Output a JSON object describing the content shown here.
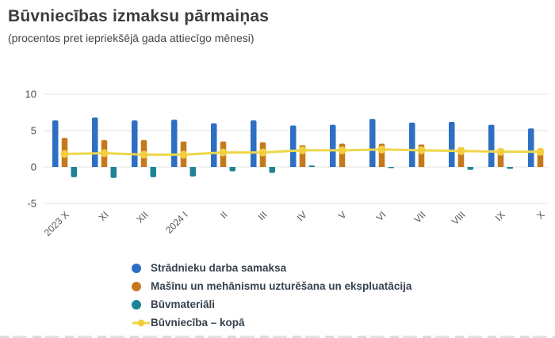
{
  "header": {
    "title": "Būvniecības izmaksu pārmaiņas",
    "subtitle": "(procentos pret iepriekšējā gada attiecīgo mēnesi)"
  },
  "chart_data": {
    "type": "bar",
    "title": "Būvniecības izmaksu pārmaiņas",
    "subtitle": "(procentos pret iepriekšējā gada attiecīgo mēnesi)",
    "categories": [
      "2023 X",
      "XI",
      "XII",
      "2024 I",
      "II",
      "III",
      "IV",
      "V",
      "VI",
      "VII",
      "VIII",
      "IX",
      "X"
    ],
    "series": [
      {
        "key": "wages",
        "name": "Strādnieku darba samaksa",
        "type": "bar",
        "color": "#2e6fc4",
        "values": [
          6.4,
          6.8,
          6.4,
          6.5,
          6.0,
          6.4,
          5.7,
          5.8,
          6.6,
          6.1,
          6.2,
          5.8,
          5.3
        ]
      },
      {
        "key": "machinery",
        "name": "Mašīnu un mehānismu uzturēšana un ekspluatācija",
        "type": "bar",
        "color": "#c5791d",
        "values": [
          4.0,
          3.7,
          3.7,
          3.5,
          3.5,
          3.4,
          3.0,
          3.2,
          3.2,
          3.1,
          2.7,
          1.9,
          1.9
        ]
      },
      {
        "key": "materials",
        "name": "Būvmateriāli",
        "type": "bar",
        "color": "#1f8495",
        "values": [
          -1.4,
          -1.5,
          -1.4,
          -1.3,
          -0.6,
          -0.8,
          0.2,
          0,
          -0.15,
          0,
          -0.4,
          -0.25,
          0
        ]
      },
      {
        "key": "total",
        "name": "Būvniecība – kopā",
        "type": "line",
        "color": "#eed64a",
        "marker_color": "#f3cf40",
        "values": [
          1.8,
          1.9,
          1.7,
          1.7,
          2.0,
          2.0,
          2.3,
          2.3,
          2.4,
          2.3,
          2.2,
          2.1,
          2.1
        ]
      }
    ],
    "xlabel": "",
    "ylabel": "",
    "yticks": [
      10,
      5,
      0,
      -5
    ],
    "ylim": [
      -6.5,
      11
    ],
    "grid": true,
    "grid_color": "#e3e3e3",
    "axis_label_color": "#4a4a4a",
    "x_label_color": "#575757",
    "legend_position": "bottom"
  }
}
